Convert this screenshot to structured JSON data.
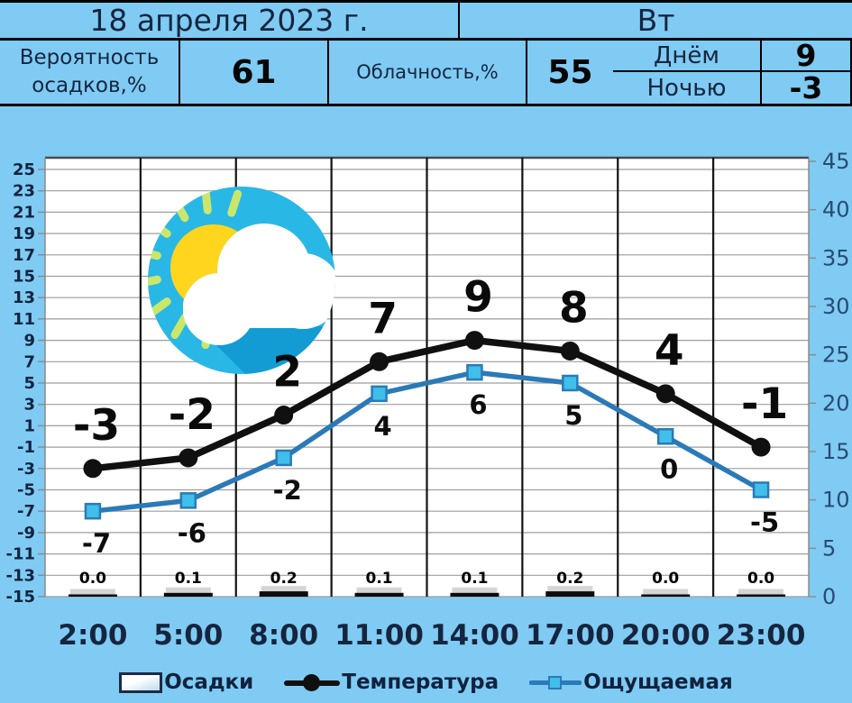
{
  "header": {
    "date": "18 апреля 2023 г.",
    "weekday": "Вт",
    "day": {
      "label": "Днём",
      "value": "9"
    },
    "night": {
      "label": "Ночью",
      "value": "-3"
    },
    "precip_probability": {
      "label_line1": "Вероятность",
      "label_line2": "осадков,%",
      "value": "61"
    },
    "cloudiness": {
      "label": "Облачность,%",
      "value": "55"
    }
  },
  "chart_data": {
    "type": "line",
    "categories": [
      "2:00",
      "5:00",
      "8:00",
      "11:00",
      "14:00",
      "17:00",
      "20:00",
      "23:00"
    ],
    "series": [
      {
        "name": "Температура",
        "type": "line",
        "axis": "left",
        "marker": "circle",
        "values": [
          -3,
          -2,
          2,
          7,
          9,
          8,
          4,
          -1
        ]
      },
      {
        "name": "Ощущаемая",
        "type": "line",
        "axis": "left",
        "marker": "square",
        "values": [
          -7,
          -6,
          -2,
          4,
          6,
          5,
          0,
          -5
        ]
      },
      {
        "name": "Осадки",
        "type": "bar",
        "axis": "right",
        "values": [
          0.0,
          0.1,
          0.2,
          0.1,
          0.1,
          0.2,
          0.0,
          0.0
        ]
      }
    ],
    "left_axis": {
      "min": -15,
      "max": 25,
      "step": 2
    },
    "right_axis": {
      "min": 0,
      "max": 45,
      "step": 5
    },
    "grid": true,
    "legend_position": "bottom",
    "legend_labels": [
      "Осадки",
      "Температура",
      "Ощущаемая"
    ]
  },
  "icon": {
    "name": "sun-behind-cloud"
  },
  "colors": {
    "background": "#7fcbf3",
    "plot_background": "#ffffff",
    "text_navy": "#16253f",
    "grid_line": "#9e9e9e",
    "category_line": "#131313",
    "left_axis_label": "#13233f",
    "right_axis_label": "#2a4a72",
    "temperature_line": "#101010",
    "feels_like_line": "#2b7ab8",
    "feels_like_marker": "#3fbfe9",
    "bar_black": "#0c0c0c",
    "bar_shadow": "#b9b9b9",
    "icon_circle": "#29b7e6",
    "icon_sun": "#ffd51e",
    "icon_rays": "#cbe76b",
    "icon_shadow": "#139cd3"
  }
}
